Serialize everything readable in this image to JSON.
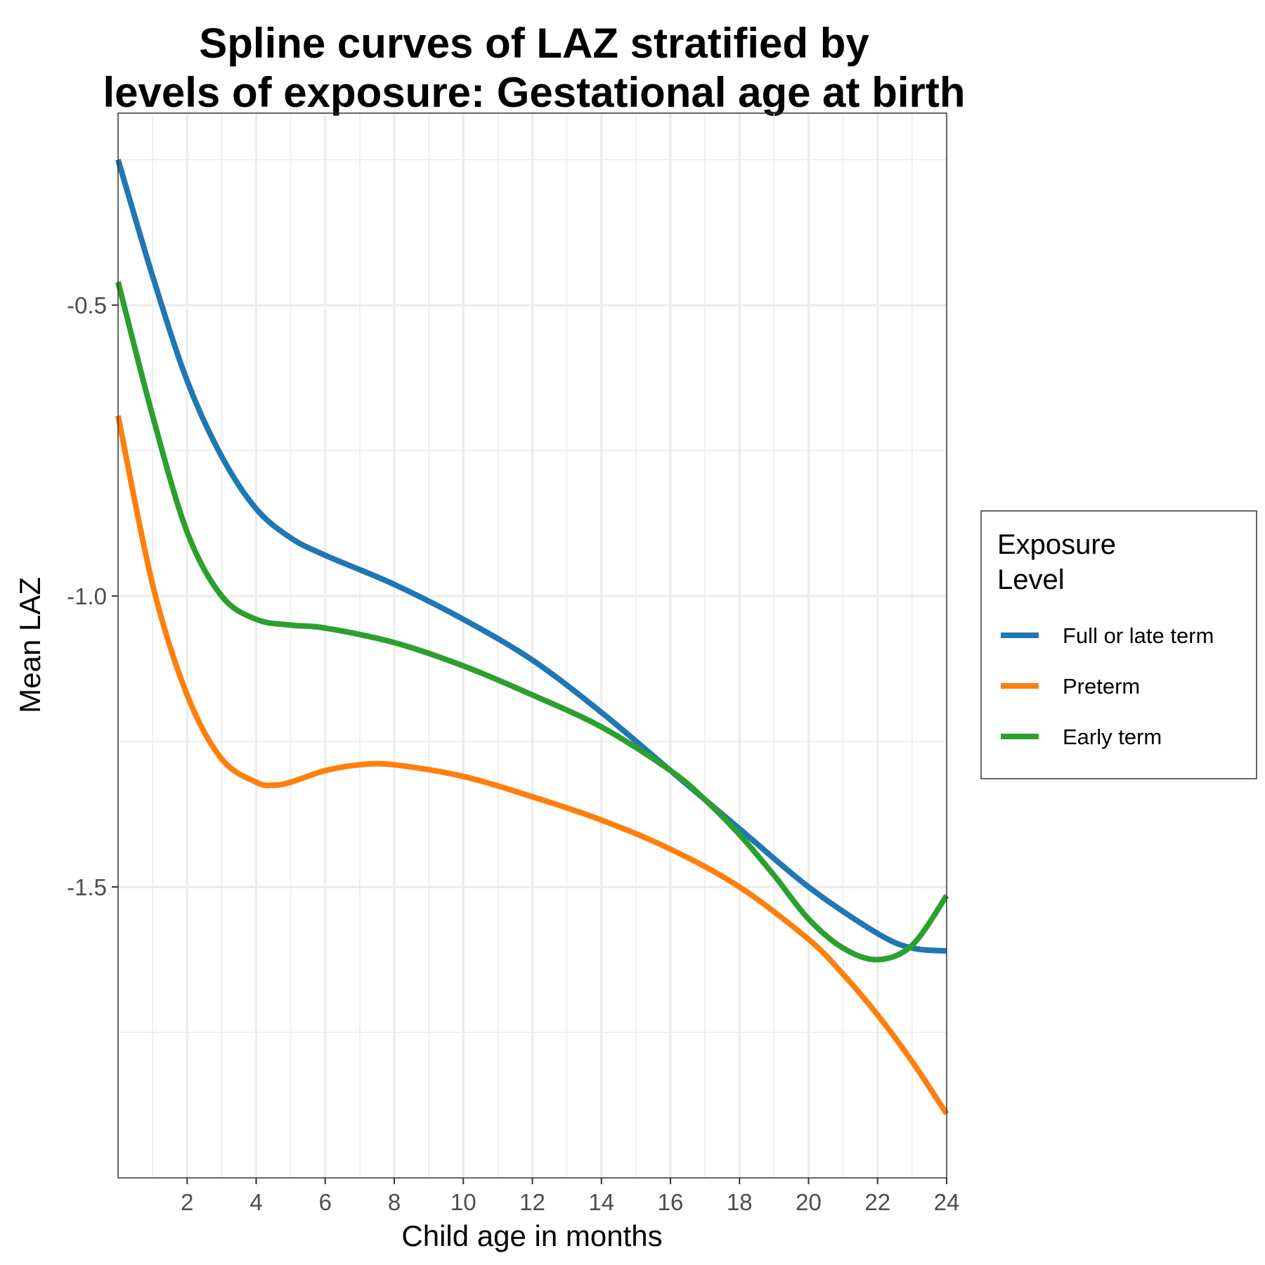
{
  "chart_data": {
    "type": "line",
    "title": "Spline curves of LAZ stratified by levels of exposure: Gestational age at birth",
    "title_lines": [
      "Spline curves of LAZ stratified by",
      "levels of exposure: Gestational age at birth"
    ],
    "xlabel": "Child age in months",
    "ylabel": "Mean LAZ",
    "xlim": [
      0,
      24
    ],
    "ylim": [
      -2.0,
      -0.17
    ],
    "x_ticks": [
      2,
      4,
      6,
      8,
      10,
      12,
      14,
      16,
      18,
      20,
      22,
      24
    ],
    "x_tick_labels": [
      "2",
      "4",
      "6",
      "8",
      "10",
      "12",
      "14",
      "16",
      "18",
      "20",
      "22",
      "24"
    ],
    "y_ticks": [
      -0.5,
      -1.0,
      -1.5
    ],
    "y_tick_labels": [
      "-0.5",
      "-1.0",
      "-1.5"
    ],
    "grid": true,
    "legend": {
      "title_lines": [
        "Exposure",
        "Level"
      ],
      "placement": "right"
    },
    "series": [
      {
        "name": "Full or late term",
        "color": "#1f77b4",
        "x": [
          0,
          1,
          2,
          3,
          4,
          5,
          6,
          8,
          10,
          12,
          14,
          16,
          18,
          20,
          22,
          23,
          24
        ],
        "y": [
          -0.25,
          -0.45,
          -0.63,
          -0.76,
          -0.85,
          -0.9,
          -0.93,
          -0.98,
          -1.04,
          -1.11,
          -1.2,
          -1.3,
          -1.4,
          -1.5,
          -1.58,
          -1.605,
          -1.61
        ]
      },
      {
        "name": "Preterm",
        "color": "#ff7f0e",
        "x": [
          0,
          1,
          2,
          3,
          4,
          4.5,
          5,
          6,
          7,
          8,
          10,
          12,
          14,
          16,
          18,
          20,
          21,
          22,
          23,
          24
        ],
        "y": [
          -0.69,
          -0.98,
          -1.17,
          -1.28,
          -1.32,
          -1.325,
          -1.32,
          -1.3,
          -1.29,
          -1.29,
          -1.31,
          -1.345,
          -1.385,
          -1.435,
          -1.5,
          -1.59,
          -1.65,
          -1.72,
          -1.8,
          -1.89
        ]
      },
      {
        "name": "Early term",
        "color": "#2ca02c",
        "x": [
          0,
          1,
          2,
          3,
          4,
          5,
          6,
          8,
          10,
          12,
          14,
          16,
          17,
          18,
          19,
          20,
          21,
          22,
          23,
          24
        ],
        "y": [
          -0.46,
          -0.69,
          -0.89,
          -1.0,
          -1.04,
          -1.05,
          -1.055,
          -1.08,
          -1.12,
          -1.17,
          -1.225,
          -1.3,
          -1.35,
          -1.41,
          -1.48,
          -1.555,
          -1.605,
          -1.625,
          -1.6,
          -1.515
        ]
      }
    ]
  }
}
